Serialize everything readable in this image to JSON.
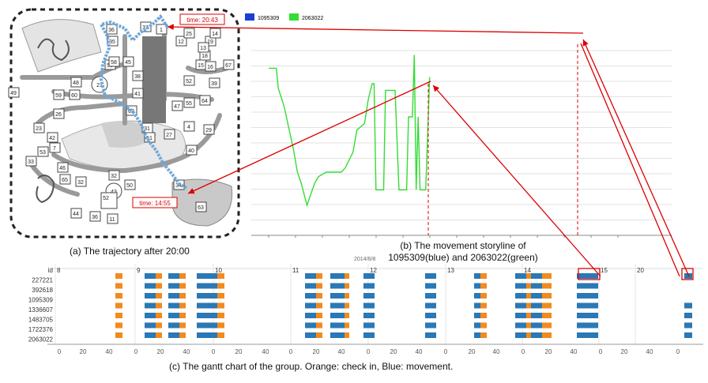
{
  "map": {
    "time_start": "time: 14:55",
    "time_end": "time: 20:43",
    "labels": [
      "37",
      "32",
      "12",
      "19",
      "18",
      "15",
      "16",
      "67",
      "13",
      "14",
      "39",
      "45",
      "38",
      "41",
      "47",
      "52",
      "55",
      "64",
      "48",
      "21",
      "56",
      "58",
      "35",
      "36",
      "49",
      "59",
      "26",
      "60",
      "62",
      "31",
      "51",
      "27",
      "4",
      "29",
      "23",
      "42",
      "53",
      "7",
      "33",
      "46",
      "65",
      "32",
      "43",
      "52",
      "50",
      "34",
      "63",
      "36",
      "44",
      "11",
      "1",
      "25",
      "40"
    ]
  },
  "story": {
    "legend": [
      {
        "name": "1095309",
        "color": "#1a3fd4"
      },
      {
        "name": "2063022",
        "color": "#33dd33"
      }
    ],
    "date_label": "2014/6/8",
    "series_green": [
      [
        0,
        6.7
      ],
      [
        0.2,
        6.7
      ],
      [
        0.25,
        5.8
      ],
      [
        0.4,
        5.0
      ],
      [
        0.55,
        3.8
      ],
      [
        0.65,
        3.0
      ],
      [
        0.75,
        2.0
      ],
      [
        0.85,
        1.5
      ],
      [
        1.0,
        0.5
      ],
      [
        1.2,
        1.5
      ],
      [
        1.3,
        1.8
      ],
      [
        1.5,
        2.0
      ],
      [
        1.9,
        2.0
      ],
      [
        2.0,
        2.2
      ],
      [
        2.2,
        2.9
      ],
      [
        2.3,
        3.9
      ],
      [
        2.5,
        4.2
      ],
      [
        2.6,
        5.3
      ],
      [
        2.7,
        6.0
      ],
      [
        2.75,
        6.0
      ],
      [
        2.8,
        1.2
      ],
      [
        3.0,
        1.2
      ],
      [
        3.05,
        5.7
      ],
      [
        3.3,
        5.7
      ],
      [
        3.4,
        1.2
      ],
      [
        3.6,
        1.2
      ],
      [
        3.65,
        4.5
      ],
      [
        3.75,
        4.5
      ],
      [
        3.8,
        7.3
      ],
      [
        3.85,
        1.2
      ],
      [
        3.9,
        4.5
      ],
      [
        3.95,
        1.2
      ],
      [
        4.1,
        1.2
      ],
      [
        4.2,
        6.3
      ]
    ]
  },
  "gantt": {
    "ids": [
      "id",
      "227221",
      "392618",
      "1095309",
      "1336607",
      "1483705",
      "1722376",
      "2063022"
    ],
    "hours": [
      "8",
      "9",
      "10",
      "11",
      "12",
      "13",
      "14",
      "15",
      "20"
    ],
    "ticks": [
      "0",
      "20",
      "40",
      "0",
      "20",
      "40",
      "0",
      "20",
      "40",
      "0",
      "20",
      "40",
      "0",
      "20",
      "40",
      "0",
      "20",
      "40",
      "0",
      "20",
      "40",
      "0",
      "20",
      "40",
      "0",
      "20",
      "40"
    ],
    "colors": {
      "checkin": "#f28a1e",
      "movement": "#2a78b5"
    }
  },
  "captions": {
    "a": "(a) The trajectory after 20:00",
    "b1": "(b) The movement storyline of",
    "b2": "1095309(blue) and 2063022(green)",
    "c": "(c) The gantt chart of the group. Orange: check in, Blue: movement."
  }
}
